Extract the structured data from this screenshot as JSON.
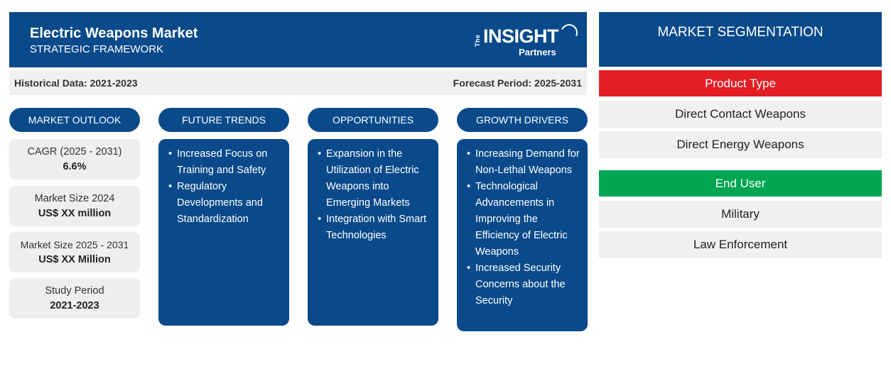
{
  "header": {
    "title": "Electric Weapons Market",
    "subtitle": "STRATEGIC FRAMEWORK",
    "logo": {
      "the": "The",
      "insight": "INSIGHT",
      "partners": "Partners"
    }
  },
  "periods": {
    "historical": "Historical Data: 2021-2023",
    "forecast": "Forecast Period: 2025-2031"
  },
  "columns": {
    "outlook": {
      "label": "MARKET OUTLOOK"
    },
    "trends": {
      "label": "FUTURE TRENDS",
      "items": [
        "Increased Focus on Training and Safety",
        "Regulatory Developments and Standardization"
      ]
    },
    "opportunities": {
      "label": "OPPORTUNITIES",
      "items": [
        "Expansion in the Utilization of Electric Weapons into Emerging Markets",
        "Integration with Smart Technologies"
      ]
    },
    "drivers": {
      "label": "GROWTH DRIVERS",
      "items": [
        "Increasing Demand for Non-Lethal Weapons",
        "Technological Advancements in Improving the Efficiency of Electric Weapons",
        "Increased Security Concerns about the Security"
      ]
    }
  },
  "outlook": [
    {
      "label": "CAGR (2025 - 2031)",
      "value": "6.6%"
    },
    {
      "label": "Market Size 2024",
      "value": "US$ XX million"
    },
    {
      "label": "Market Size 2025 - 2031",
      "value": "US$ XX Million"
    },
    {
      "label": "Study Period",
      "value": "2021-2023"
    }
  ],
  "segmentation": {
    "title": "MARKET SEGMENTATION",
    "groups": [
      {
        "name": "Product Type",
        "color": "#e31e24",
        "items": [
          "Direct Contact Weapons",
          "Direct Energy Weapons"
        ]
      },
      {
        "name": "End User",
        "color": "#00a651",
        "items": [
          "Military",
          "Law Enforcement"
        ]
      }
    ]
  },
  "colors": {
    "primary": "#0a4a8a",
    "panel": "#eeeeee"
  }
}
